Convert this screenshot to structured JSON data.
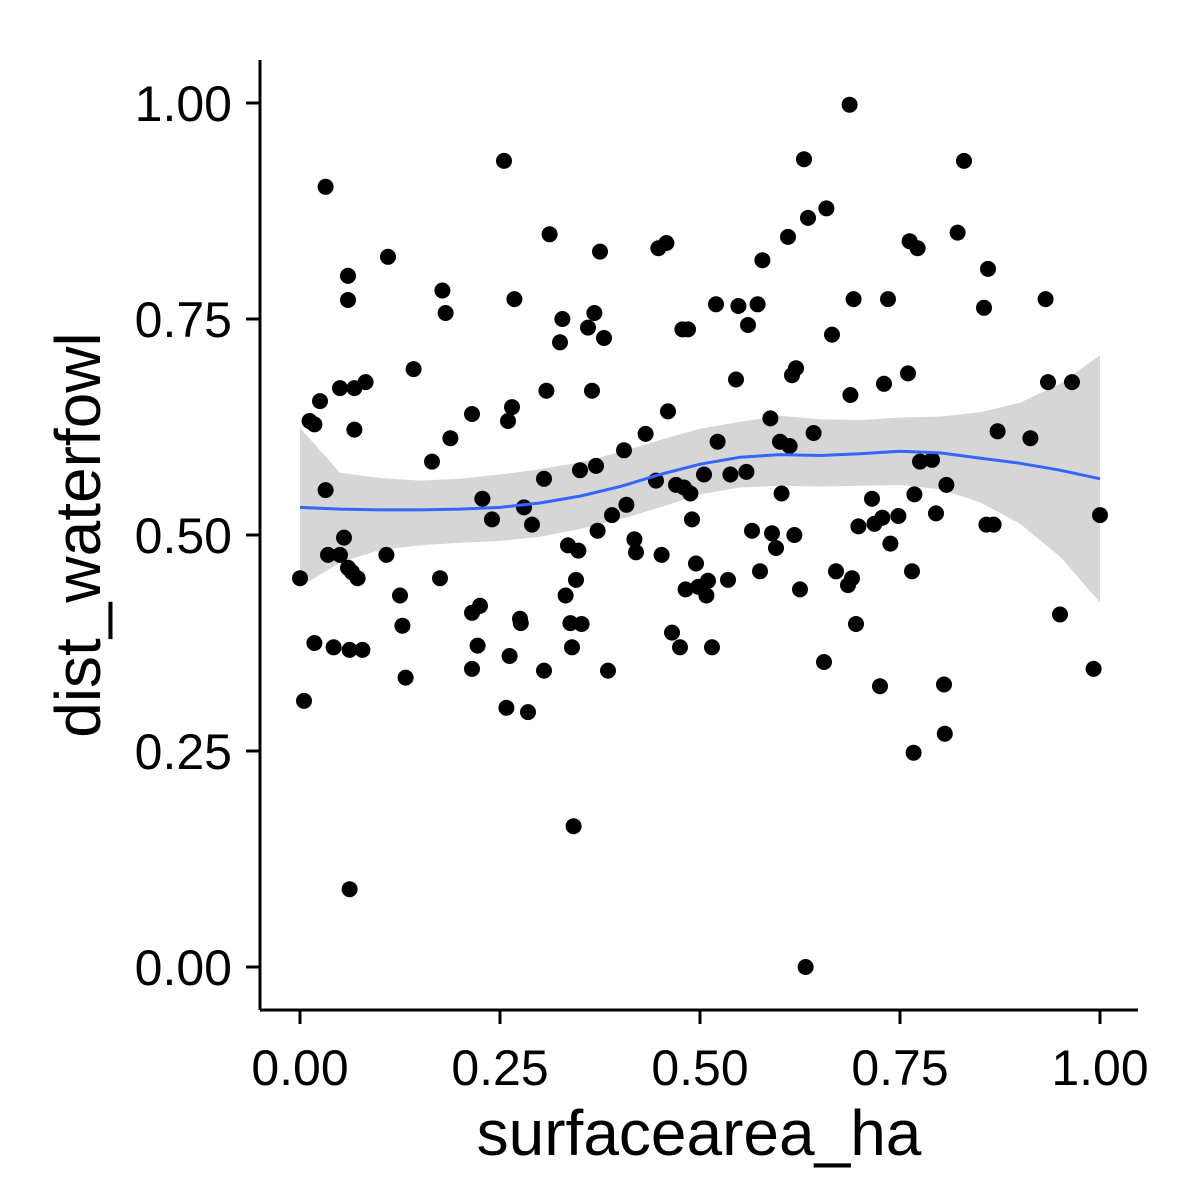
{
  "chart_data": {
    "type": "scatter",
    "xlabel": "surfacearea_ha",
    "ylabel": "dist_waterfowl",
    "xlim": [
      -0.05,
      1.05
    ],
    "ylim": [
      -0.05,
      1.05
    ],
    "x_ticks": [
      "0.00",
      "0.25",
      "0.50",
      "0.75",
      "1.00"
    ],
    "y_ticks": [
      "0.00",
      "0.25",
      "0.50",
      "0.75",
      "1.00"
    ],
    "x_tick_values": [
      0,
      0.25,
      0.5,
      0.75,
      1
    ],
    "y_tick_values": [
      0,
      0.25,
      0.5,
      0.75,
      1
    ],
    "grid": false,
    "point_color": "#000000",
    "smooth_color": "#3366FF",
    "band_color": "#999999",
    "points": [
      [
        0.0,
        0.45
      ],
      [
        0.005,
        0.308
      ],
      [
        0.012,
        0.632
      ],
      [
        0.018,
        0.628
      ],
      [
        0.018,
        0.375
      ],
      [
        0.025,
        0.655
      ],
      [
        0.032,
        0.903
      ],
      [
        0.032,
        0.552
      ],
      [
        0.035,
        0.477
      ],
      [
        0.042,
        0.37
      ],
      [
        0.05,
        0.67
      ],
      [
        0.05,
        0.477
      ],
      [
        0.055,
        0.497
      ],
      [
        0.06,
        0.8
      ],
      [
        0.06,
        0.772
      ],
      [
        0.06,
        0.462
      ],
      [
        0.062,
        0.09
      ],
      [
        0.062,
        0.367
      ],
      [
        0.065,
        0.457
      ],
      [
        0.068,
        0.67
      ],
      [
        0.068,
        0.622
      ],
      [
        0.072,
        0.45
      ],
      [
        0.078,
        0.367
      ],
      [
        0.082,
        0.677
      ],
      [
        0.108,
        0.477
      ],
      [
        0.11,
        0.822
      ],
      [
        0.125,
        0.43
      ],
      [
        0.128,
        0.395
      ],
      [
        0.132,
        0.335
      ],
      [
        0.142,
        0.692
      ],
      [
        0.165,
        0.585
      ],
      [
        0.175,
        0.45
      ],
      [
        0.178,
        0.783
      ],
      [
        0.182,
        0.757
      ],
      [
        0.188,
        0.612
      ],
      [
        0.215,
        0.64
      ],
      [
        0.215,
        0.345
      ],
      [
        0.215,
        0.41
      ],
      [
        0.222,
        0.372
      ],
      [
        0.225,
        0.418
      ],
      [
        0.228,
        0.542
      ],
      [
        0.24,
        0.518
      ],
      [
        0.255,
        0.933
      ],
      [
        0.258,
        0.3
      ],
      [
        0.26,
        0.632
      ],
      [
        0.262,
        0.36
      ],
      [
        0.265,
        0.648
      ],
      [
        0.268,
        0.773
      ],
      [
        0.275,
        0.403
      ],
      [
        0.276,
        0.398
      ],
      [
        0.28,
        0.532
      ],
      [
        0.285,
        0.295
      ],
      [
        0.29,
        0.512
      ],
      [
        0.305,
        0.343
      ],
      [
        0.305,
        0.565
      ],
      [
        0.308,
        0.667
      ],
      [
        0.312,
        0.848
      ],
      [
        0.325,
        0.723
      ],
      [
        0.328,
        0.75
      ],
      [
        0.332,
        0.43
      ],
      [
        0.335,
        0.488
      ],
      [
        0.338,
        0.398
      ],
      [
        0.34,
        0.37
      ],
      [
        0.342,
        0.163
      ],
      [
        0.345,
        0.448
      ],
      [
        0.348,
        0.482
      ],
      [
        0.35,
        0.575
      ],
      [
        0.352,
        0.397
      ],
      [
        0.36,
        0.74
      ],
      [
        0.365,
        0.667
      ],
      [
        0.368,
        0.757
      ],
      [
        0.37,
        0.58
      ],
      [
        0.372,
        0.505
      ],
      [
        0.375,
        0.828
      ],
      [
        0.38,
        0.728
      ],
      [
        0.385,
        0.343
      ],
      [
        0.39,
        0.523
      ],
      [
        0.405,
        0.598
      ],
      [
        0.408,
        0.535
      ],
      [
        0.418,
        0.495
      ],
      [
        0.42,
        0.48
      ],
      [
        0.432,
        0.617
      ],
      [
        0.445,
        0.563
      ],
      [
        0.448,
        0.832
      ],
      [
        0.452,
        0.477
      ],
      [
        0.458,
        0.838
      ],
      [
        0.46,
        0.643
      ],
      [
        0.465,
        0.387
      ],
      [
        0.47,
        0.558
      ],
      [
        0.475,
        0.37
      ],
      [
        0.478,
        0.738
      ],
      [
        0.48,
        0.555
      ],
      [
        0.482,
        0.437
      ],
      [
        0.485,
        0.738
      ],
      [
        0.488,
        0.548
      ],
      [
        0.49,
        0.518
      ],
      [
        0.495,
        0.467
      ],
      [
        0.498,
        0.44
      ],
      [
        0.505,
        0.57
      ],
      [
        0.508,
        0.43
      ],
      [
        0.51,
        0.447
      ],
      [
        0.515,
        0.37
      ],
      [
        0.52,
        0.767
      ],
      [
        0.522,
        0.608
      ],
      [
        0.535,
        0.448
      ],
      [
        0.538,
        0.57
      ],
      [
        0.545,
        0.68
      ],
      [
        0.548,
        0.765
      ],
      [
        0.558,
        0.573
      ],
      [
        0.56,
        0.743
      ],
      [
        0.565,
        0.505
      ],
      [
        0.572,
        0.767
      ],
      [
        0.575,
        0.458
      ],
      [
        0.578,
        0.818
      ],
      [
        0.588,
        0.635
      ],
      [
        0.59,
        0.502
      ],
      [
        0.595,
        0.485
      ],
      [
        0.6,
        0.608
      ],
      [
        0.602,
        0.548
      ],
      [
        0.61,
        0.845
      ],
      [
        0.612,
        0.603
      ],
      [
        0.615,
        0.685
      ],
      [
        0.618,
        0.5
      ],
      [
        0.62,
        0.693
      ],
      [
        0.625,
        0.437
      ],
      [
        0.63,
        0.935
      ],
      [
        0.632,
        0.0
      ],
      [
        0.635,
        0.867
      ],
      [
        0.642,
        0.618
      ],
      [
        0.655,
        0.353
      ],
      [
        0.658,
        0.878
      ],
      [
        0.665,
        0.732
      ],
      [
        0.67,
        0.458
      ],
      [
        0.685,
        0.442
      ],
      [
        0.687,
        0.998
      ],
      [
        0.688,
        0.662
      ],
      [
        0.69,
        0.45
      ],
      [
        0.692,
        0.773
      ],
      [
        0.695,
        0.397
      ],
      [
        0.698,
        0.51
      ],
      [
        0.715,
        0.542
      ],
      [
        0.718,
        0.513
      ],
      [
        0.725,
        0.325
      ],
      [
        0.728,
        0.52
      ],
      [
        0.73,
        0.675
      ],
      [
        0.735,
        0.773
      ],
      [
        0.738,
        0.49
      ],
      [
        0.748,
        0.522
      ],
      [
        0.76,
        0.687
      ],
      [
        0.762,
        0.84
      ],
      [
        0.765,
        0.458
      ],
      [
        0.767,
        0.248
      ],
      [
        0.768,
        0.547
      ],
      [
        0.772,
        0.832
      ],
      [
        0.775,
        0.585
      ],
      [
        0.79,
        0.587
      ],
      [
        0.795,
        0.525
      ],
      [
        0.805,
        0.327
      ],
      [
        0.806,
        0.27
      ],
      [
        0.808,
        0.558
      ],
      [
        0.822,
        0.85
      ],
      [
        0.83,
        0.933
      ],
      [
        0.855,
        0.763
      ],
      [
        0.858,
        0.512
      ],
      [
        0.86,
        0.808
      ],
      [
        0.867,
        0.512
      ],
      [
        0.872,
        0.62
      ],
      [
        0.913,
        0.612
      ],
      [
        0.932,
        0.773
      ],
      [
        0.935,
        0.677
      ],
      [
        0.95,
        0.408
      ],
      [
        0.965,
        0.677
      ],
      [
        0.992,
        0.345
      ],
      [
        1.0,
        0.523
      ]
    ],
    "smooth": [
      [
        0.0,
        0.532
      ],
      [
        0.05,
        0.53
      ],
      [
        0.1,
        0.529
      ],
      [
        0.15,
        0.529
      ],
      [
        0.2,
        0.53
      ],
      [
        0.25,
        0.532
      ],
      [
        0.3,
        0.537
      ],
      [
        0.35,
        0.545
      ],
      [
        0.4,
        0.556
      ],
      [
        0.45,
        0.57
      ],
      [
        0.5,
        0.582
      ],
      [
        0.55,
        0.59
      ],
      [
        0.6,
        0.593
      ],
      [
        0.65,
        0.592
      ],
      [
        0.7,
        0.594
      ],
      [
        0.75,
        0.597
      ],
      [
        0.8,
        0.595
      ],
      [
        0.85,
        0.589
      ],
      [
        0.9,
        0.583
      ],
      [
        0.95,
        0.575
      ],
      [
        1.0,
        0.565
      ]
    ],
    "smooth_band": [
      [
        0.0,
        0.44,
        0.624
      ],
      [
        0.05,
        0.468,
        0.572
      ],
      [
        0.1,
        0.483,
        0.566
      ],
      [
        0.15,
        0.488,
        0.563
      ],
      [
        0.2,
        0.491,
        0.565
      ],
      [
        0.25,
        0.493,
        0.57
      ],
      [
        0.3,
        0.498,
        0.576
      ],
      [
        0.35,
        0.507,
        0.584
      ],
      [
        0.4,
        0.518,
        0.596
      ],
      [
        0.45,
        0.532,
        0.61
      ],
      [
        0.5,
        0.547,
        0.623
      ],
      [
        0.55,
        0.555,
        0.631
      ],
      [
        0.6,
        0.557,
        0.638
      ],
      [
        0.65,
        0.556,
        0.634
      ],
      [
        0.7,
        0.557,
        0.633
      ],
      [
        0.75,
        0.558,
        0.636
      ],
      [
        0.8,
        0.553,
        0.637
      ],
      [
        0.85,
        0.538,
        0.642
      ],
      [
        0.9,
        0.513,
        0.653
      ],
      [
        0.95,
        0.475,
        0.675
      ],
      [
        1.0,
        0.422,
        0.708
      ]
    ]
  }
}
